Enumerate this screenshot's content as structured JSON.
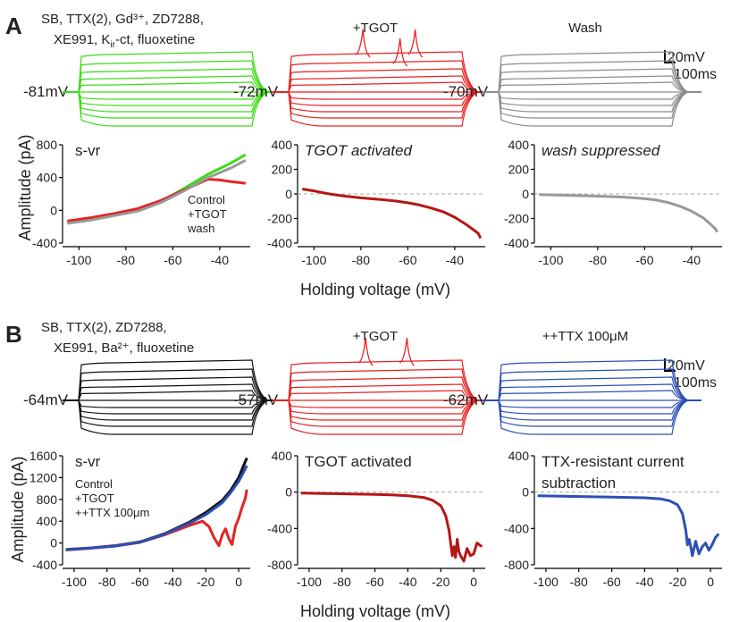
{
  "panels": [
    {
      "letter": "A",
      "conditions": {
        "line1": "SB, TTX(2), Gd³⁺, ZD7288,",
        "line2": "XE991, K",
        "line2_sub": "ir",
        "line2_end": "-ct, fluoxetine"
      },
      "traces": [
        {
          "title": "",
          "vm_label": "-81mV",
          "color": "#3bdc14",
          "spikes": []
        },
        {
          "title": "+TGOT",
          "vm_label": "-72mV",
          "color": "#e52222",
          "spikes": [
            {
              "pos": 0.28,
              "step": 1
            },
            {
              "pos": 0.55,
              "step": 2
            },
            {
              "pos": 0.66,
              "step": 1
            }
          ]
        },
        {
          "title": "Wash",
          "vm_label": "-70mV",
          "color": "#8c8c8c",
          "spikes": []
        }
      ],
      "scalebar": {
        "v": "20mV",
        "t": "100ms"
      }
    },
    {
      "letter": "B",
      "conditions": {
        "line1": "SB, TTX(2), ZD7288,",
        "line2": "XE991, Ba²⁺, fluoxetine",
        "line2_sub": "",
        "line2_end": ""
      },
      "traces": [
        {
          "title": "",
          "vm_label": "-64mV",
          "color": "#111111",
          "spikes": []
        },
        {
          "title": "+TGOT",
          "vm_label": "-57mV",
          "color": "#e52222",
          "spikes": [
            {
              "pos": 0.3,
              "step": 1
            },
            {
              "pos": 0.6,
              "step": 1
            }
          ]
        },
        {
          "title": "++TTX 100μM",
          "vm_label": "-62mV",
          "color": "#2d4fb4",
          "spikes": []
        }
      ],
      "scalebar": {
        "v": "20mV",
        "t": "100ms"
      }
    }
  ],
  "ylabel": "Amplitude (pA)",
  "xlabel": "Holding voltage (mV)",
  "chart_data": [
    {
      "type": "line",
      "panel": "A",
      "title": "s-vr",
      "xlim": [
        -107,
        -27
      ],
      "ylim": [
        -400,
        800
      ],
      "xticks": [
        -100,
        -80,
        -60,
        -40
      ],
      "yticks": [
        -400,
        0,
        400,
        800
      ],
      "series": [
        {
          "name": "Control",
          "color": "#3bdc14",
          "x": [
            -105,
            -95,
            -85,
            -75,
            -65,
            -55,
            -45,
            -35,
            -29
          ],
          "y": [
            -150,
            -110,
            -55,
            0,
            110,
            270,
            440,
            580,
            680
          ]
        },
        {
          "name": "+TGOT",
          "color": "#e52222",
          "x": [
            -105,
            -95,
            -85,
            -75,
            -65,
            -55,
            -45,
            -40,
            -35,
            -29
          ],
          "y": [
            -130,
            -90,
            -40,
            20,
            120,
            250,
            380,
            370,
            350,
            330
          ]
        },
        {
          "name": "wash",
          "color": "#999999",
          "x": [
            -105,
            -95,
            -85,
            -75,
            -65,
            -55,
            -45,
            -35,
            -29
          ],
          "y": [
            -160,
            -120,
            -65,
            -10,
            95,
            240,
            400,
            520,
            610
          ]
        }
      ],
      "legend": [
        "Control",
        "+TGOT",
        "wash"
      ],
      "legend_position": "bottom-right"
    },
    {
      "type": "line",
      "panel": "A",
      "title": "TGOT activated",
      "xlim": [
        -107,
        -27
      ],
      "ylim": [
        -400,
        400
      ],
      "xticks": [
        -100,
        -80,
        -60,
        -40
      ],
      "yticks": [
        -400,
        -200,
        0,
        200,
        400
      ],
      "zero_line": true,
      "series": [
        {
          "name": "",
          "color": "#b51616",
          "x": [
            -105,
            -100,
            -95,
            -90,
            -85,
            -80,
            -75,
            -70,
            -65,
            -60,
            -55,
            -50,
            -45,
            -40,
            -35,
            -30,
            -29
          ],
          "y": [
            40,
            25,
            5,
            -10,
            -22,
            -32,
            -40,
            -48,
            -58,
            -72,
            -90,
            -115,
            -145,
            -190,
            -250,
            -320,
            -360
          ]
        }
      ]
    },
    {
      "type": "line",
      "panel": "A",
      "title": "wash suppressed",
      "xlim": [
        -107,
        -27
      ],
      "ylim": [
        -400,
        400
      ],
      "xticks": [
        -100,
        -80,
        -60,
        -40
      ],
      "yticks": [
        -400,
        -200,
        0,
        200,
        400
      ],
      "zero_line": true,
      "series": [
        {
          "name": "",
          "color": "#999999",
          "x": [
            -105,
            -100,
            -90,
            -80,
            -70,
            -60,
            -55,
            -50,
            -45,
            -40,
            -35,
            -30,
            -29
          ],
          "y": [
            -5,
            -8,
            -12,
            -18,
            -25,
            -38,
            -50,
            -70,
            -100,
            -140,
            -195,
            -280,
            -310
          ]
        }
      ]
    },
    {
      "type": "line",
      "panel": "B",
      "title": "s-vr",
      "xlim": [
        -107,
        7
      ],
      "ylim": [
        -400,
        1600
      ],
      "xticks": [
        -100,
        -80,
        -60,
        -40,
        -20,
        0
      ],
      "yticks": [
        -400,
        0,
        400,
        800,
        1200,
        1600
      ],
      "series": [
        {
          "name": "Control",
          "color": "#111111",
          "x": [
            -105,
            -90,
            -75,
            -60,
            -45,
            -30,
            -20,
            -10,
            -5,
            0,
            3,
            5
          ],
          "y": [
            -120,
            -90,
            -50,
            20,
            170,
            380,
            560,
            780,
            960,
            1200,
            1420,
            1560
          ]
        },
        {
          "name": "+TGOT",
          "color": "#e52222",
          "x": [
            -105,
            -90,
            -75,
            -60,
            -45,
            -30,
            -22,
            -18,
            -15,
            -12,
            -10,
            -8,
            -6,
            -4,
            -2,
            0,
            2,
            4,
            5
          ],
          "y": [
            -130,
            -95,
            -55,
            10,
            150,
            320,
            400,
            300,
            100,
            -50,
            150,
            260,
            80,
            -30,
            300,
            450,
            650,
            820,
            980
          ]
        },
        {
          "name": "++TTX 100μm",
          "color": "#2d4fb4",
          "x": [
            -105,
            -90,
            -75,
            -60,
            -45,
            -30,
            -20,
            -10,
            -5,
            0,
            3,
            5
          ],
          "y": [
            -125,
            -95,
            -55,
            15,
            160,
            360,
            520,
            740,
            920,
            1130,
            1300,
            1420
          ]
        }
      ],
      "legend": [
        "Control",
        "+TGOT",
        "++TTX 100μm"
      ],
      "legend_position": "bottom-left"
    },
    {
      "type": "line",
      "panel": "B",
      "title": "TGOT activated",
      "xlim": [
        -107,
        7
      ],
      "ylim": [
        -800,
        400
      ],
      "xticks": [
        -100,
        -80,
        -60,
        -40,
        -20,
        0
      ],
      "yticks": [
        -800,
        -400,
        0,
        400
      ],
      "zero_line": true,
      "series": [
        {
          "name": "",
          "color": "#b51616",
          "x": [
            -105,
            -90,
            -75,
            -60,
            -50,
            -40,
            -30,
            -25,
            -20,
            -17,
            -15,
            -14,
            -13,
            -12,
            -11,
            -10,
            -9,
            -8,
            -6,
            -4,
            -2,
            0,
            2,
            5
          ],
          "y": [
            -10,
            -15,
            -20,
            -25,
            -30,
            -40,
            -60,
            -90,
            -150,
            -260,
            -420,
            -560,
            -700,
            -600,
            -720,
            -520,
            -650,
            -700,
            -760,
            -620,
            -700,
            -680,
            -560,
            -600
          ]
        }
      ]
    },
    {
      "type": "line",
      "panel": "B",
      "title": "TTX-resistant current",
      "subtitle": "subtraction",
      "xlim": [
        -107,
        7
      ],
      "ylim": [
        -800,
        400
      ],
      "xticks": [
        -100,
        -80,
        -60,
        -40,
        -20,
        0
      ],
      "yticks": [
        -800,
        -400,
        0,
        400
      ],
      "zero_line": true,
      "series": [
        {
          "name": "",
          "color": "#2d4fb4",
          "x": [
            -105,
            -90,
            -75,
            -60,
            -50,
            -40,
            -30,
            -25,
            -20,
            -17,
            -15,
            -14,
            -13,
            -12,
            -11,
            -10,
            -9,
            -7,
            -5,
            -3,
            -1,
            1,
            3,
            5
          ],
          "y": [
            -40,
            -45,
            -50,
            -55,
            -58,
            -62,
            -75,
            -95,
            -140,
            -240,
            -420,
            -580,
            -520,
            -600,
            -700,
            -620,
            -540,
            -680,
            -600,
            -560,
            -640,
            -580,
            -500,
            -460
          ]
        }
      ]
    }
  ]
}
